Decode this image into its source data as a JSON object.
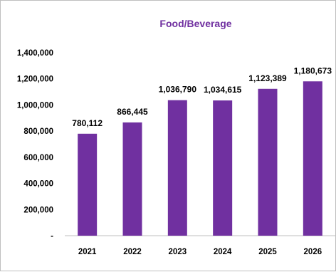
{
  "chart_data": {
    "type": "bar",
    "title": "Food/Beverage",
    "categories": [
      "2021",
      "2022",
      "2023",
      "2024",
      "2025",
      "2026"
    ],
    "values": [
      780112,
      866445,
      1036790,
      1034615,
      1123389,
      1180673
    ],
    "data_labels": [
      "780,112",
      "866,445",
      "1,036,790",
      "1,034,615",
      "1,123,389",
      "1,180,673"
    ],
    "ylim": [
      0,
      1400000
    ],
    "yticks": [
      0,
      200000,
      400000,
      600000,
      800000,
      1000000,
      1200000,
      1400000
    ],
    "ytick_labels": [
      "-",
      "200,000",
      "400,000",
      "600,000",
      "800,000",
      "1,000,000",
      "1,200,000",
      "1,400,000"
    ],
    "xlabel": "",
    "ylabel": "",
    "grid": false,
    "legend": "none",
    "colors": {
      "bar": "#7030A0",
      "title": "#7030A0",
      "axis": "#bfbfbf"
    }
  }
}
